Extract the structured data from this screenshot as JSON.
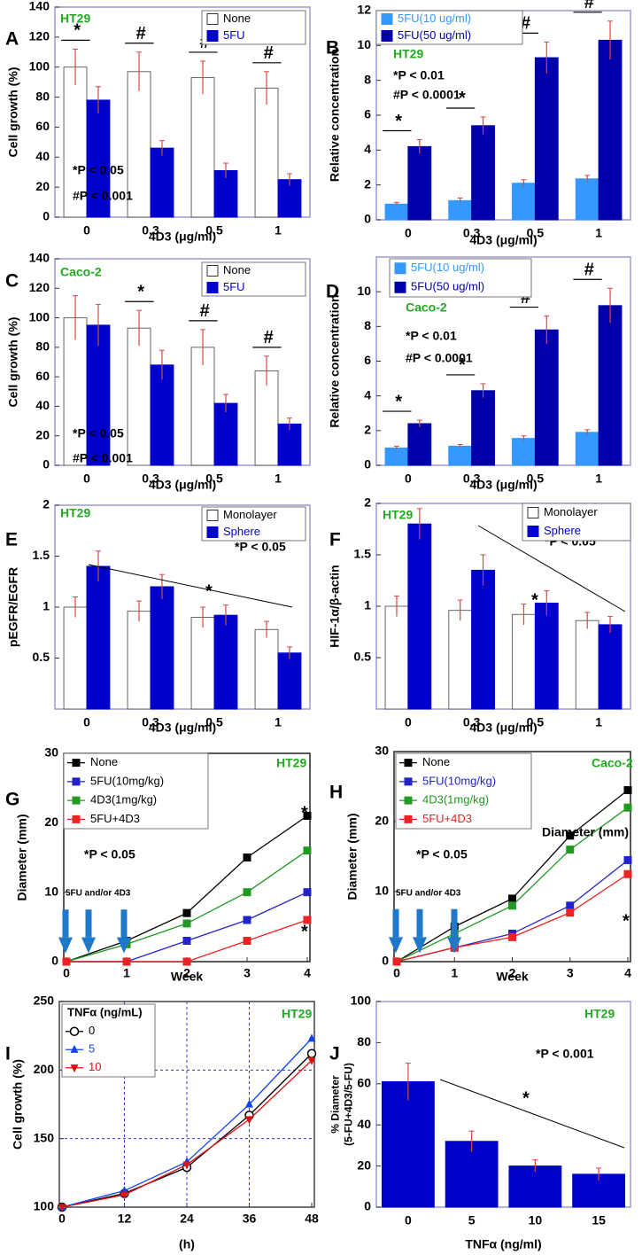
{
  "chart_data": [
    {
      "type": "bar",
      "panel_label": "A",
      "cell_line": "HT29",
      "cell_line_color": "#22aa22",
      "categories": [
        "0",
        "0.3",
        "0.5",
        "1"
      ],
      "series": [
        {
          "name": "None",
          "color": "#ffffff",
          "label_color": "#000000",
          "values": [
            100,
            97,
            93,
            86
          ],
          "errors": [
            12,
            13,
            11,
            11
          ]
        },
        {
          "name": "5FU",
          "color": "#0000cc",
          "label_color": "#0000cc",
          "values": [
            78,
            46,
            31,
            25
          ],
          "errors": [
            9,
            5,
            5,
            4
          ]
        }
      ],
      "ylim": [
        0,
        140
      ],
      "yticks": [
        0,
        20,
        40,
        60,
        80,
        100,
        120,
        140
      ],
      "xlabel": "4D3 (μg/ml)",
      "ylabel": "Cell growth (%)",
      "sig_labels": [
        "*",
        "#",
        "#",
        "#"
      ],
      "annotations": [
        "*P < 0.05",
        "#P < 0.001"
      ],
      "legend": "upper right"
    },
    {
      "type": "bar",
      "panel_label": "B",
      "cell_line": "HT29",
      "cell_line_color": "#22aa22",
      "categories": [
        "0",
        "0.3",
        "0.5",
        "1"
      ],
      "series": [
        {
          "name": "5FU(10 ug/ml)",
          "color": "#3399ff",
          "label_color": "#3399ff",
          "values": [
            0.9,
            1.1,
            2.1,
            2.35
          ],
          "errors": [
            0.1,
            0.15,
            0.2,
            0.2
          ]
        },
        {
          "name": "5FU(50 ug/ml)",
          "color": "#0000aa",
          "label_color": "#0000aa",
          "values": [
            4.2,
            5.4,
            9.3,
            10.3
          ],
          "errors": [
            0.4,
            0.5,
            0.9,
            1.1
          ]
        }
      ],
      "ylim": [
        0,
        12
      ],
      "yticks": [
        0,
        2,
        4,
        6,
        8,
        10,
        12
      ],
      "xlabel": "4D3 (μg/ml)",
      "ylabel": "Relative concentration",
      "sig_labels": [
        "*",
        "*",
        "#",
        "#"
      ],
      "annotations": [
        "*P < 0.01",
        "#P < 0.0001"
      ],
      "legend": "upper left"
    },
    {
      "type": "bar",
      "panel_label": "C",
      "cell_line": "Caco-2",
      "cell_line_color": "#22aa22",
      "categories": [
        "0",
        "0.3",
        "0.5",
        "1"
      ],
      "series": [
        {
          "name": "None",
          "color": "#ffffff",
          "label_color": "#000000",
          "values": [
            100,
            93,
            80,
            64
          ],
          "errors": [
            15,
            12,
            12,
            10
          ]
        },
        {
          "name": "5FU",
          "color": "#0000cc",
          "label_color": "#0000cc",
          "values": [
            95,
            68,
            42,
            28
          ],
          "errors": [
            14,
            10,
            6,
            4
          ]
        }
      ],
      "ylim": [
        0,
        140
      ],
      "yticks": [
        0,
        20,
        40,
        60,
        80,
        100,
        120,
        140
      ],
      "xlabel": "4D3 (μg/ml)",
      "ylabel": "Cell growth (%)",
      "sig_labels": [
        "",
        "*",
        "#",
        "#"
      ],
      "annotations": [
        "*P < 0.05",
        "#P < 0.001"
      ],
      "legend": "upper right"
    },
    {
      "type": "bar",
      "panel_label": "D",
      "cell_line": "Caco-2",
      "cell_line_color": "#22aa22",
      "categories": [
        "0",
        "0.3",
        "0.5",
        "1"
      ],
      "series": [
        {
          "name": "5FU(10 ug/ml)",
          "color": "#3399ff",
          "label_color": "#3399ff",
          "values": [
            1.0,
            1.1,
            1.55,
            1.9
          ],
          "errors": [
            0.1,
            0.1,
            0.15,
            0.15
          ]
        },
        {
          "name": "5FU(50 ug/ml)",
          "color": "#0000aa",
          "label_color": "#0000aa",
          "values": [
            2.4,
            4.3,
            7.8,
            9.2
          ],
          "errors": [
            0.2,
            0.4,
            0.8,
            1.0
          ]
        }
      ],
      "ylim": [
        0,
        12
      ],
      "yticks": [
        0,
        2,
        4,
        6,
        8,
        10
      ],
      "xlabel": "4D3 (μg/ml)",
      "ylabel": "Relative concentration",
      "sig_labels": [
        "*",
        "*",
        "#",
        "#"
      ],
      "annotations": [
        "*P < 0.01",
        "#P < 0.0001"
      ],
      "legend": "upper left"
    },
    {
      "type": "bar",
      "panel_label": "E",
      "cell_line": "HT29",
      "cell_line_color": "#22aa22",
      "categories": [
        "0",
        "0.3",
        "0.5",
        "1"
      ],
      "series": [
        {
          "name": "Monolayer",
          "color": "#ffffff",
          "label_color": "#000000",
          "values": [
            1.0,
            0.96,
            0.9,
            0.78
          ],
          "errors": [
            0.1,
            0.1,
            0.1,
            0.08
          ]
        },
        {
          "name": "Sphere",
          "color": "#0000cc",
          "label_color": "#0000cc",
          "values": [
            1.4,
            1.2,
            0.92,
            0.55
          ],
          "errors": [
            0.15,
            0.12,
            0.1,
            0.06
          ]
        }
      ],
      "ylim": [
        0,
        2
      ],
      "yticks": [
        0.5,
        1,
        1.5,
        2
      ],
      "xlabel": "4D3 (μg/ml)",
      "ylabel": "pEGFR/EGFR",
      "annotations": [
        "*P < 0.05",
        "*"
      ],
      "legend": "upper right"
    },
    {
      "type": "bar",
      "panel_label": "F",
      "cell_line": "HT29",
      "cell_line_color": "#22aa22",
      "categories": [
        "0",
        "0.3",
        "0.5",
        "1"
      ],
      "series": [
        {
          "name": "Monolayer",
          "color": "#ffffff",
          "label_color": "#000000",
          "values": [
            1.0,
            0.96,
            0.92,
            0.86
          ],
          "errors": [
            0.1,
            0.1,
            0.1,
            0.08
          ]
        },
        {
          "name": "Sphere",
          "color": "#0000cc",
          "label_color": "#0000cc",
          "values": [
            1.8,
            1.35,
            1.03,
            0.82
          ],
          "errors": [
            0.15,
            0.15,
            0.12,
            0.08
          ]
        }
      ],
      "ylim": [
        0,
        2
      ],
      "yticks": [
        0.5,
        1,
        1.5,
        2
      ],
      "xlabel": "4D3 (μg/ml)",
      "ylabel": "HIF-1α/β-actin",
      "annotations": [
        "*P < 0.05",
        "*"
      ],
      "legend": "upper right"
    },
    {
      "type": "line",
      "panel_label": "G",
      "cell_line": "HT29",
      "cell_line_color": "#22aa22",
      "x": [
        0,
        1,
        2,
        3,
        4
      ],
      "xlim": [
        0,
        4
      ],
      "xticks": [
        0,
        1,
        2,
        3,
        4
      ],
      "series": [
        {
          "name": "None",
          "color": "#000000",
          "marker": "square",
          "values": [
            0,
            3,
            7,
            15,
            21
          ]
        },
        {
          "name": "5FU(10mg/kg)",
          "color": "#2222cc",
          "marker": "square",
          "values": [
            0,
            0,
            3,
            6,
            10
          ]
        },
        {
          "name": "4D3(1mg/kg)",
          "color": "#229922",
          "marker": "square",
          "values": [
            0,
            2.5,
            5.5,
            10,
            16
          ]
        },
        {
          "name": "5FU+4D3",
          "color": "#ee2222",
          "marker": "square",
          "values": [
            0,
            0,
            0,
            3,
            6
          ]
        }
      ],
      "ylim": [
        0,
        30
      ],
      "yticks": [
        0,
        10,
        20,
        30
      ],
      "xlabel": "Week",
      "ylabel": "Diameter (mm)",
      "annotations": [
        "*P < 0.05",
        "5FU and/or 4D3",
        "*",
        "*"
      ],
      "legend": "upper left"
    },
    {
      "type": "line",
      "panel_label": "H",
      "cell_line": "Caco-2",
      "cell_line_color": "#22aa22",
      "x": [
        0,
        1,
        2,
        3,
        4
      ],
      "xlim": [
        0,
        4
      ],
      "xticks": [
        0,
        1,
        2,
        3,
        4
      ],
      "series": [
        {
          "name": "None",
          "color": "#000000",
          "label_color": "#000000",
          "marker": "square",
          "values": [
            0,
            5,
            9,
            18,
            24.5
          ]
        },
        {
          "name": "5FU(10mg/kg)",
          "color": "#2222cc",
          "label_color": "#2222cc",
          "marker": "square",
          "values": [
            0,
            2,
            4,
            8,
            14.5
          ]
        },
        {
          "name": "4D3(1mg/kg)",
          "color": "#229922",
          "label_color": "#229922",
          "marker": "square",
          "values": [
            0,
            4,
            8,
            16,
            22
          ]
        },
        {
          "name": "5FU+4D3",
          "color": "#ee2222",
          "label_color": "#ee2222",
          "marker": "square",
          "values": [
            0,
            2,
            3.5,
            7,
            12.5
          ]
        }
      ],
      "ylim": [
        0,
        30
      ],
      "yticks": [
        0,
        10,
        20,
        30
      ],
      "xlabel": "Week",
      "ylabel": "Diameter (mm)",
      "annotations": [
        "Diameter (mm)",
        "*P < 0.05",
        "5FU and/or 4D3",
        "*"
      ],
      "legend": "upper left"
    },
    {
      "type": "line",
      "panel_label": "I",
      "cell_line": "HT29",
      "cell_line_color": "#22aa22",
      "x": [
        0,
        12,
        24,
        36,
        48
      ],
      "xlim": [
        0,
        48
      ],
      "xticks": [
        0,
        12,
        24,
        36,
        48
      ],
      "legend_title": "TNFα (ng/mL)",
      "series": [
        {
          "name": "0",
          "color": "#000000",
          "label_color": "#000000",
          "marker": "circle",
          "values": [
            100,
            110,
            129,
            167,
            212
          ]
        },
        {
          "name": "5",
          "color": "#1144ee",
          "label_color": "#1144ee",
          "marker": "triangle-up",
          "values": [
            100,
            112,
            133,
            175,
            223
          ]
        },
        {
          "name": "10",
          "color": "#dd1111",
          "label_color": "#dd1111",
          "marker": "triangle-down",
          "values": [
            100,
            109,
            131,
            164,
            207
          ]
        }
      ],
      "ylim": [
        100,
        250
      ],
      "yticks": [
        100,
        150,
        200,
        250
      ],
      "grid": true,
      "grid_color": "#3333cc",
      "xlabel": "(h)",
      "ylabel": "Cell growth (%)",
      "legend": "upper left"
    },
    {
      "type": "bar",
      "panel_label": "J",
      "cell_line": "HT29",
      "cell_line_color": "#22aa22",
      "categories": [
        "0",
        "5",
        "10",
        "15"
      ],
      "values": [
        61,
        32,
        20,
        16
      ],
      "errors": [
        9,
        5,
        3,
        3
      ],
      "color": "#0000cc",
      "ylim": [
        0,
        100
      ],
      "yticks": [
        0,
        20,
        40,
        60,
        80,
        100
      ],
      "xlabel": "TNFα (ng/ml)",
      "ylabel": [
        "% Diameter",
        "(5-FU+4D3/5-FU)"
      ],
      "annotations": [
        "*P < 0.001",
        "*"
      ]
    }
  ]
}
